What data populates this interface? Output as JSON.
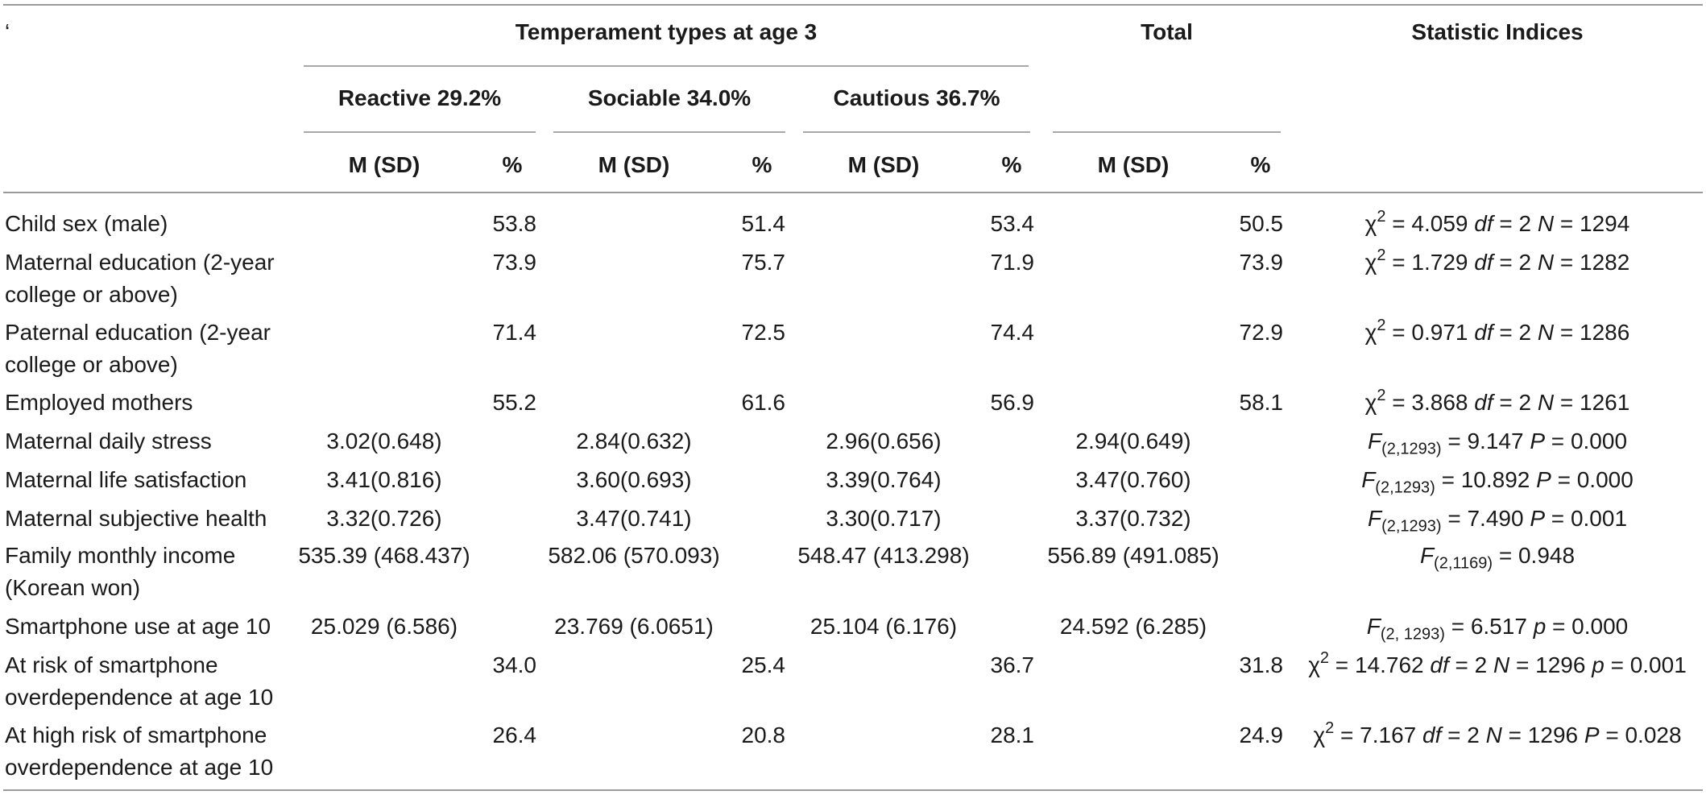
{
  "header": {
    "corner_mark": "‘",
    "group_title": "Temperament types at age 3",
    "total_title": "Total",
    "stat_title": "Statistic Indices",
    "subgroups": [
      "Reactive 29.2%",
      "Sociable 34.0%",
      "Cautious 36.7%"
    ],
    "msd": "M (SD)",
    "pct": "%"
  },
  "rows": [
    {
      "label_lines": [
        "Child sex (male)"
      ],
      "values": [
        "",
        "53.8",
        "",
        "51.4",
        "",
        "53.4",
        "",
        "50.5"
      ],
      "stat": {
        "kind": "chi",
        "sym": "χ",
        "sup": "2",
        "v1": " = 4.059 ",
        "i1": "df",
        "v2": " = 2 ",
        "i2": "N",
        "v3": " = 1294",
        "i3": "",
        "v4": ""
      }
    },
    {
      "label_lines": [
        "Maternal education (2-year",
        "college or above)"
      ],
      "values": [
        "",
        "73.9",
        "",
        "75.7",
        "",
        "71.9",
        "",
        "73.9"
      ],
      "stat": {
        "kind": "chi",
        "sym": "χ",
        "sup": "2",
        "v1": " = 1.729 ",
        "i1": "df",
        "v2": " = 2 ",
        "i2": "N",
        "v3": " = 1282",
        "i3": "",
        "v4": ""
      }
    },
    {
      "label_lines": [
        "Paternal education (2-year",
        "college or above)"
      ],
      "values": [
        "",
        "71.4",
        "",
        "72.5",
        "",
        "74.4",
        "",
        "72.9"
      ],
      "stat": {
        "kind": "chi",
        "sym": "χ",
        "sup": "2",
        "v1": " = 0.971 ",
        "i1": "df",
        "v2": " = 2 ",
        "i2": "N",
        "v3": " = 1286",
        "i3": "",
        "v4": ""
      }
    },
    {
      "label_lines": [
        "Employed mothers"
      ],
      "values": [
        "",
        "55.2",
        "",
        "61.6",
        "",
        "56.9",
        "",
        "58.1"
      ],
      "stat": {
        "kind": "chi",
        "sym": "χ",
        "sup": "2",
        "v1": " = 3.868 ",
        "i1": "df",
        "v2": " = 2 ",
        "i2": "N",
        "v3": " = 1261",
        "i3": "",
        "v4": ""
      }
    },
    {
      "label_lines": [
        "Maternal daily stress"
      ],
      "values": [
        "3.02(0.648)",
        "",
        "2.84(0.632)",
        "",
        "2.96(0.656)",
        "",
        "2.94(0.649)",
        ""
      ],
      "stat": {
        "kind": "f",
        "sym": "F",
        "sub": "(2,1293)",
        "v1": " = 9.147 ",
        "i1": "P",
        "v2": " = 0.000"
      }
    },
    {
      "label_lines": [
        "Maternal life satisfaction"
      ],
      "values": [
        "3.41(0.816)",
        "",
        "3.60(0.693)",
        "",
        "3.39(0.764)",
        "",
        "3.47(0.760)",
        ""
      ],
      "stat": {
        "kind": "f",
        "sym": "F",
        "sub": "(2,1293)",
        "v1": " = 10.892 ",
        "i1": "P",
        "v2": " = 0.000"
      }
    },
    {
      "label_lines": [
        "Maternal subjective health"
      ],
      "values": [
        "3.32(0.726)",
        "",
        "3.47(0.741)",
        "",
        "3.30(0.717)",
        "",
        "3.37(0.732)",
        ""
      ],
      "stat": {
        "kind": "f",
        "sym": "F",
        "sub": "(2,1293)",
        "v1": " = 7.490 ",
        "i1": "P",
        "v2": " = 0.001"
      }
    },
    {
      "label_lines": [
        "Family monthly income",
        "(Korean won)"
      ],
      "values": [
        "535.39 (468.437)",
        "",
        "582.06 (570.093)",
        "",
        "548.47 (413.298)",
        "",
        "556.89 (491.085)",
        ""
      ],
      "stat": {
        "kind": "f",
        "sym": "F",
        "sub": "(2,1169)",
        "v1": " = 0.948",
        "i1": "",
        "v2": ""
      }
    },
    {
      "label_lines": [
        "Smartphone use at age 10"
      ],
      "values": [
        "25.029 (6.586)",
        "",
        "23.769 (6.0651)",
        "",
        "25.104 (6.176)",
        "",
        "24.592 (6.285)",
        ""
      ],
      "stat": {
        "kind": "f",
        "sym": "F",
        "sub": "(2, 1293)",
        "v1": " = 6.517 ",
        "i1": "p",
        "v2": " = 0.000"
      }
    },
    {
      "label_lines": [
        "At risk of smartphone",
        "overdependence at age 10"
      ],
      "values": [
        "",
        "34.0",
        "",
        "25.4",
        "",
        "36.7",
        "",
        "31.8"
      ],
      "stat": {
        "kind": "chi",
        "sym": "χ",
        "sup": "2",
        "v1": " = 14.762 ",
        "i1": "df",
        "v2": " = 2 ",
        "i2": "N",
        "v3": " = 1296 ",
        "i3": "p",
        "v4": " = 0.001"
      }
    },
    {
      "label_lines": [
        "At high risk of smartphone",
        "overdependence at age 10"
      ],
      "values": [
        "",
        "26.4",
        "",
        "20.8",
        "",
        "28.1",
        "",
        "24.9"
      ],
      "stat": {
        "kind": "chi",
        "sym": "χ",
        "sup": "2",
        "v1": " = 7.167 ",
        "i1": "df",
        "v2": " = 2 ",
        "i2": "N",
        "v3": " = 1296 ",
        "i3": "P",
        "v4": " = 0.028"
      }
    }
  ]
}
